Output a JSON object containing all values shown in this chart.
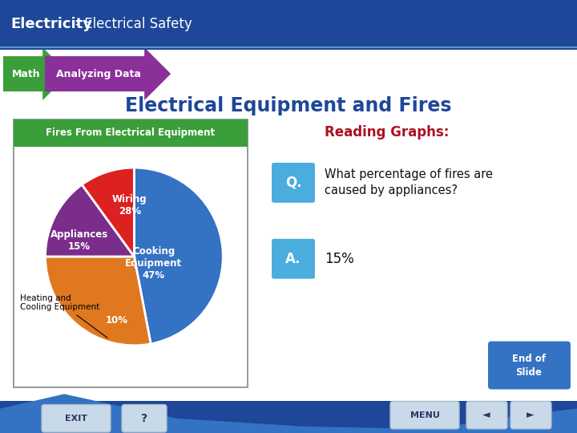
{
  "title_main": "Electrical Equipment and Fires",
  "header_bold": "Electricity",
  "header_normal": "- Electrical Safety",
  "header_bg": "#1e4799",
  "math_label": "Math",
  "math_label_bg": "#3a9e3a",
  "analyzing_label": "Analyzing Data",
  "analyzing_label_bg": "#8b2f99",
  "pie_title": "Fires From Electrical Equipment",
  "pie_title_bg": "#3a9e3a",
  "slices": [
    47,
    28,
    15,
    10
  ],
  "slice_labels_inside": [
    "Cooking\nEquipment\n47%",
    "Wiring\n28%",
    "Appliances\n15%",
    "10%"
  ],
  "slice_colors": [
    "#3472c4",
    "#e07820",
    "#7b2d8b",
    "#dd2020"
  ],
  "label_outside": "Heating and\nCooling Equipment",
  "reading_graphs_text": "Reading Graphs:",
  "reading_graphs_color": "#aa1122",
  "q_label": "Q.",
  "q_bg": "#4aaddd",
  "question_text": "What percentage of fires are\ncaused by appliances?",
  "a_label": "A.",
  "a_bg": "#4aaddd",
  "answer_text": "15%",
  "end_of_slide_text": "End of\nSlide",
  "end_of_slide_bg": "#3472c4",
  "background_dark": "#1e4799",
  "background_white": "#ffffff",
  "bottom_wave_color": "#3472c4"
}
